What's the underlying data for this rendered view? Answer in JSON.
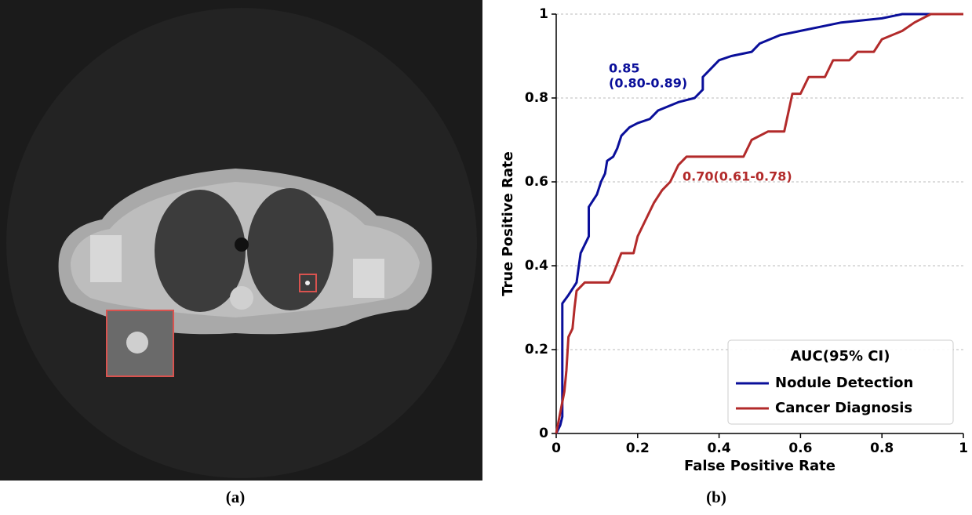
{
  "captions": [
    "(a)",
    "(b)"
  ],
  "chart_data": {
    "type": "line",
    "xlabel": "False Positive Rate",
    "ylabel": "True Positive Rate",
    "xlim": [
      0,
      1
    ],
    "ylim": [
      0,
      1
    ],
    "xticks": [
      0,
      0.2,
      0.4,
      0.6,
      0.8,
      1
    ],
    "yticks": [
      0,
      0.2,
      0.4,
      0.6,
      0.8,
      1
    ],
    "grid": "y",
    "legend_title": "AUC(95% CI)",
    "legend_position": "lower right",
    "series": [
      {
        "name": "Nodule Detection",
        "color": "#0a0f9a",
        "x": [
          0,
          0.01,
          0.015,
          0.015,
          0.03,
          0.05,
          0.06,
          0.08,
          0.08,
          0.1,
          0.11,
          0.12,
          0.125,
          0.14,
          0.15,
          0.16,
          0.18,
          0.2,
          0.23,
          0.25,
          0.3,
          0.34,
          0.36,
          0.36,
          0.38,
          0.4,
          0.43,
          0.48,
          0.5,
          0.55,
          0.6,
          0.65,
          0.7,
          0.8,
          0.85,
          1
        ],
        "values": [
          0,
          0.02,
          0.04,
          0.31,
          0.33,
          0.36,
          0.43,
          0.47,
          0.54,
          0.57,
          0.6,
          0.62,
          0.65,
          0.66,
          0.68,
          0.71,
          0.73,
          0.74,
          0.75,
          0.77,
          0.79,
          0.8,
          0.82,
          0.85,
          0.87,
          0.89,
          0.9,
          0.91,
          0.93,
          0.95,
          0.96,
          0.97,
          0.98,
          0.99,
          1,
          1
        ]
      },
      {
        "name": "Cancer Diagnosis",
        "color": "#b22a2a",
        "x": [
          0,
          0.02,
          0.025,
          0.03,
          0.04,
          0.045,
          0.05,
          0.07,
          0.13,
          0.14,
          0.16,
          0.19,
          0.2,
          0.22,
          0.24,
          0.26,
          0.28,
          0.3,
          0.32,
          0.46,
          0.48,
          0.52,
          0.56,
          0.58,
          0.6,
          0.62,
          0.66,
          0.68,
          0.72,
          0.74,
          0.78,
          0.8,
          0.85,
          0.88,
          0.92,
          1
        ],
        "values": [
          0,
          0.1,
          0.15,
          0.23,
          0.25,
          0.3,
          0.34,
          0.36,
          0.36,
          0.38,
          0.43,
          0.43,
          0.47,
          0.51,
          0.55,
          0.58,
          0.6,
          0.64,
          0.66,
          0.66,
          0.7,
          0.72,
          0.72,
          0.81,
          0.81,
          0.85,
          0.85,
          0.89,
          0.89,
          0.91,
          0.91,
          0.94,
          0.96,
          0.98,
          1,
          1
        ]
      }
    ],
    "annotations": [
      {
        "lines": [
          "0.85",
          "(0.80-0.89)"
        ],
        "color": "#0a0f9a"
      },
      {
        "lines": [
          "0.70(0.61-0.78)"
        ],
        "color": "#b22a2a"
      }
    ]
  }
}
